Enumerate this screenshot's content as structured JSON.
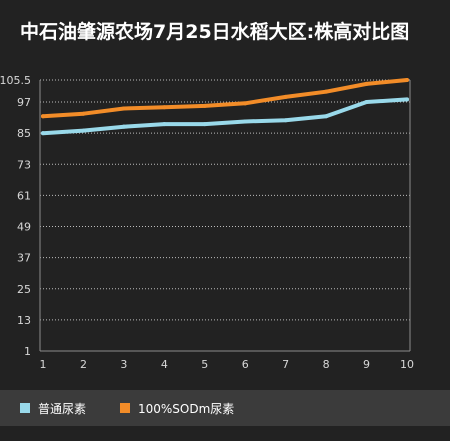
{
  "title": "中石油肇源农场7月25日水稻大区:株高对比图",
  "chart_data": {
    "type": "line",
    "title": "中石油肇源农场7月25日水稻大区:株高对比图",
    "x": [
      1,
      2,
      3,
      4,
      5,
      6,
      7,
      8,
      9,
      10
    ],
    "xlabel": "",
    "ylabel": "",
    "ylim": [
      1,
      105.5
    ],
    "yticks": [
      1,
      13,
      25,
      37,
      49,
      61,
      73,
      85,
      97,
      105.5
    ],
    "grid": true,
    "legend_position": "bottom",
    "series": [
      {
        "name": "普通尿素",
        "color": "#99d9ea",
        "values": [
          85,
          86,
          87.5,
          88.5,
          88.5,
          89.5,
          90,
          91.5,
          97,
          98
        ]
      },
      {
        "name": "100%SODm尿素",
        "color": "#f28c28",
        "values": [
          91.5,
          92.5,
          94.5,
          95,
          95.5,
          96.5,
          99,
          101,
          104,
          105.5
        ]
      }
    ]
  }
}
